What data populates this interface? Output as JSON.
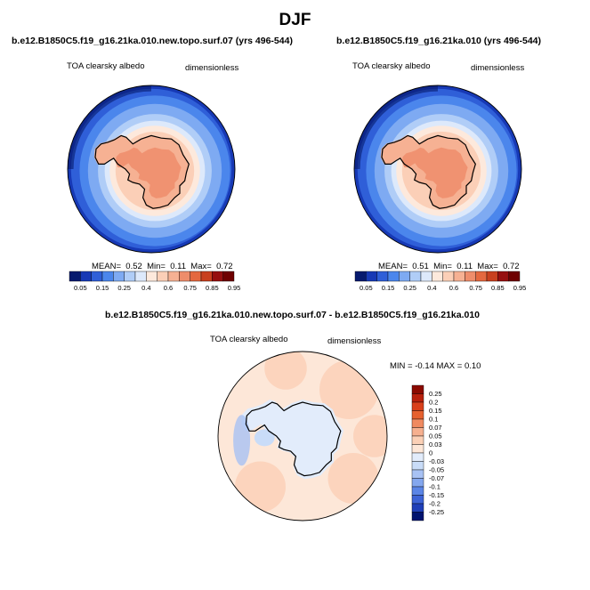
{
  "figure": {
    "title": "DJF"
  },
  "panels": [
    {
      "case": "b.e12.B1850C5.f19_g16.21ka.010.new.topo.surf.07 (yrs 496-544)",
      "field_label": "TOA clearsky albedo",
      "units_label": "dimensionless",
      "stats": {
        "mean_label": "MEAN=",
        "mean": "0.52",
        "min_label": "Min=",
        "min": "0.11",
        "max_label": "Max=",
        "max": "0.72"
      }
    },
    {
      "case": "b.e12.B1850C5.f19_g16.21ka.010 (yrs 496-544)",
      "field_label": "TOA clearsky albedo",
      "units_label": "dimensionless",
      "stats": {
        "mean_label": "MEAN=",
        "mean": "0.51",
        "min_label": "Min=",
        "min": "0.11",
        "max_label": "Max=",
        "max": "0.72"
      }
    }
  ],
  "diff": {
    "case": "b.e12.B1850C5.f19_g16.21ka.010.new.topo.surf.07 - b.e12.B1850C5.f19_g16.21ka.010",
    "field_label": "TOA clearsky albedo",
    "units_label": "dimensionless",
    "minmax": "MIN =  -0.14 MAX =   0.10"
  },
  "colors": {
    "abs_levels": [
      "#061a6e",
      "#1739b5",
      "#2f5fd8",
      "#4b86ec",
      "#7eaaf2",
      "#b0cdf7",
      "#dde9fb",
      "#fde9dc",
      "#fbcfb7",
      "#f6b193",
      "#ee8d6b",
      "#e4683f",
      "#c8401f",
      "#960f0f",
      "#6e0000"
    ],
    "diff_levels": [
      "#00136f",
      "#1f3fb8",
      "#3d63d6",
      "#5b85e6",
      "#84a7ee",
      "#a8c2f4",
      "#c9dcf8",
      "#e2ecfb",
      "#fde7d8",
      "#fbd0b6",
      "#f6b08f",
      "#f08a60",
      "#e6612f",
      "#d9401b",
      "#b8200c",
      "#8b0a00"
    ],
    "coast": "#000000"
  },
  "chart_data": [
    {
      "type": "heatmap",
      "title": "b.e12.B1850C5.f19_g16.21ka.010.new.topo.surf.07 (yrs 496-544)",
      "variable": "TOA clearsky albedo",
      "units": "dimensionless",
      "projection": "south polar stereographic",
      "colorbar_ticks": [
        "0.05",
        "0.15",
        "0.25",
        "0.4",
        "0.6",
        "0.75",
        "0.85",
        "0.95"
      ],
      "mean": 0.52,
      "min": 0.11,
      "max": 0.72,
      "regions": [
        {
          "region": "ocean near map edge",
          "value": 0.2
        },
        {
          "region": "mid-latitude ocean",
          "value": 0.35
        },
        {
          "region": "sea ice zone",
          "value": 0.55
        },
        {
          "region": "antarctic continent",
          "value": 0.67
        },
        {
          "region": "interior plateau",
          "value": 0.72
        }
      ]
    },
    {
      "type": "heatmap",
      "title": "b.e12.B1850C5.f19_g16.21ka.010 (yrs 496-544)",
      "variable": "TOA clearsky albedo",
      "units": "dimensionless",
      "projection": "south polar stereographic",
      "colorbar_ticks": [
        "0.05",
        "0.15",
        "0.25",
        "0.4",
        "0.6",
        "0.75",
        "0.85",
        "0.95"
      ],
      "mean": 0.51,
      "min": 0.11,
      "max": 0.72,
      "regions": [
        {
          "region": "ocean near map edge",
          "value": 0.2
        },
        {
          "region": "mid-latitude ocean",
          "value": 0.35
        },
        {
          "region": "sea ice zone",
          "value": 0.55
        },
        {
          "region": "antarctic continent",
          "value": 0.67
        },
        {
          "region": "interior plateau",
          "value": 0.72
        }
      ]
    },
    {
      "type": "heatmap",
      "title": "b.e12.B1850C5.f19_g16.21ka.010.new.topo.surf.07 - b.e12.B1850C5.f19_g16.21ka.010",
      "variable": "TOA clearsky albedo",
      "units": "dimensionless",
      "projection": "south polar stereographic",
      "colorbar_ticks": [
        "0.25",
        "0.2",
        "0.15",
        "0.1",
        "0.07",
        "0.05",
        "0.03",
        "0",
        "-0.03",
        "-0.05",
        "-0.07",
        "-0.1",
        "-0.15",
        "-0.2",
        "-0.25"
      ],
      "min": -0.14,
      "max": 0.1,
      "regions": [
        {
          "region": "outer ocean",
          "value": 0.02
        },
        {
          "region": "antarctic continent",
          "value": -0.01
        },
        {
          "region": "western ocean sector",
          "value": -0.04
        }
      ]
    }
  ]
}
